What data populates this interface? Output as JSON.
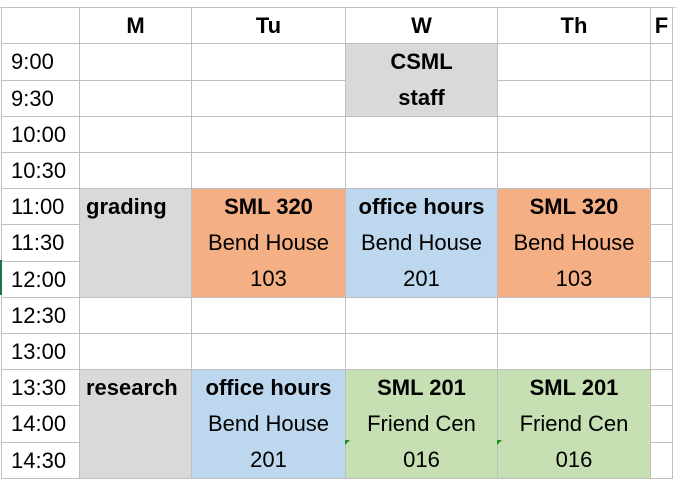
{
  "columns": [
    "M",
    "Tu",
    "W",
    "Th",
    "F"
  ],
  "times": [
    "9:00",
    "9:30",
    "10:00",
    "10:30",
    "11:00",
    "11:30",
    "12:00",
    "12:30",
    "13:00",
    "13:30",
    "14:00",
    "14:30"
  ],
  "events": {
    "csml_staff": {
      "line1": "CSML",
      "line2": "staff"
    },
    "grading": {
      "label": "grading"
    },
    "sml320_tu": {
      "line1": "SML 320",
      "line2": "Bend House",
      "line3": "103"
    },
    "office_w": {
      "line1": "office hours",
      "line2": "Bend House",
      "line3": "201"
    },
    "sml320_th": {
      "line1": "SML 320",
      "line2": "Bend House",
      "line3": "103"
    },
    "research": {
      "label": "research"
    },
    "office_tu": {
      "line1": "office hours",
      "line2": "Bend House",
      "line3": "201"
    },
    "sml201_w": {
      "line1": "SML 201",
      "line2": "Friend Cen",
      "line3": "016"
    },
    "sml201_th": {
      "line1": "SML 201",
      "line2": "Friend Cen",
      "line3": "016"
    }
  },
  "colors": {
    "gray": "#d9d9d9",
    "orange": "#f4b084",
    "blue": "#bdd7ee",
    "green": "#c6e0b4"
  }
}
